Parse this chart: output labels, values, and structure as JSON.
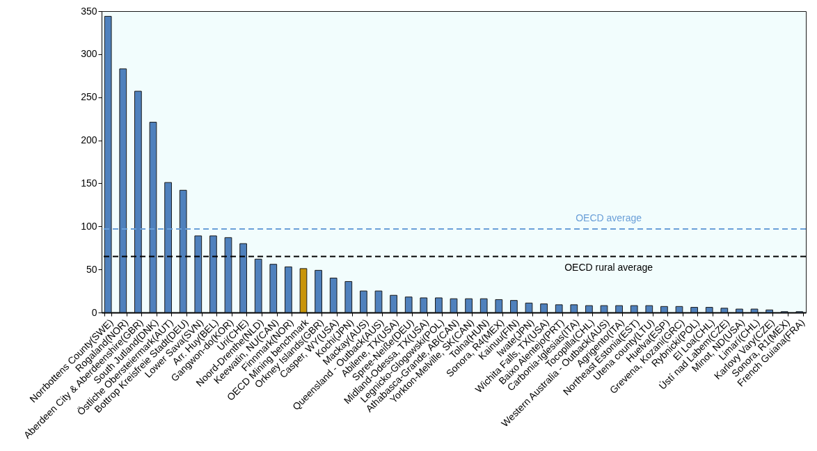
{
  "chart_data": {
    "type": "bar",
    "categories": [
      "Norrbottens County(SWE)",
      "Rogaland(NOR)",
      "Aberdeen City & Aberdeenshire(GBR)",
      "South Jutland(DNK)",
      "Östliche Obersteiermark(AUT)",
      "Bottrop Kreisfreie Stadt(DEU)",
      "Lower Sava(SVN)",
      "Arr. Huy(BEL)",
      "Gangwon-do(KOR)",
      "Uri(CHE)",
      "Noord-Drenthe(NLD)",
      "Keewatin, NU(CAN)",
      "Finnmark(NOR)",
      "OECD Mining benchmark",
      "Orkney Islands(GBR)",
      "Casper, WY(USA)",
      "Kochi(JPN)",
      "Mackay(AUS)",
      "Queensland - Outback(AUS)",
      "Abilene, TX(USA)",
      "Spree-Neiße(DEU)",
      "Midland-Odessa, TX(USA)",
      "Legnicko-Glogowski(POL)",
      "Athabasca-Grande, AB(CAN)",
      "Yorkton-Melville, SK(CAN)",
      "Tolna(HUN)",
      "Sonora, R4(MEX)",
      "Kainuu(FIN)",
      "Iwate(JPN)",
      "Wichita Falls, TX(USA)",
      "Baixo Alentejo(PRT)",
      "Carbonia-Iglesias(ITA)",
      "Tocopilla(CHL)",
      "Western Australia - Outback(AUS)",
      "Agrigento(ITA)",
      "Northeast Estonia(EST)",
      "Utena county(LTU)",
      "Huelva(ESP)",
      "Grevena, Kozani(GRC)",
      "Rybnicki(POL)",
      "El Loa(CHL)",
      "Ústí nad Labem(CZE)",
      "Minot, ND(USA)",
      "Limarí(CHL)",
      "Karlovy Vary(CZE)",
      "Sonora, R1(MEX)",
      "French Guiana(FRA)"
    ],
    "values": [
      344,
      283,
      257,
      221,
      151,
      142,
      89,
      89,
      87,
      80,
      62,
      56,
      53,
      51,
      49,
      40,
      36,
      25,
      25,
      20,
      18,
      17,
      17,
      16,
      16,
      16,
      15,
      14,
      11,
      10,
      9,
      9,
      8,
      8,
      8,
      8,
      8,
      7,
      7,
      6,
      6,
      5,
      4,
      4,
      3,
      1,
      1
    ],
    "colors": [
      "#4f81bd",
      "#4f81bd",
      "#4f81bd",
      "#4f81bd",
      "#4f81bd",
      "#4f81bd",
      "#4f81bd",
      "#4f81bd",
      "#4f81bd",
      "#4f81bd",
      "#4f81bd",
      "#4f81bd",
      "#4f81bd",
      "#c8950a",
      "#4f81bd",
      "#4f81bd",
      "#4f81bd",
      "#4f81bd",
      "#4f81bd",
      "#4f81bd",
      "#4f81bd",
      "#4f81bd",
      "#4f81bd",
      "#4f81bd",
      "#4f81bd",
      "#4f81bd",
      "#4f81bd",
      "#4f81bd",
      "#4f81bd",
      "#4f81bd",
      "#4f81bd",
      "#4f81bd",
      "#4f81bd",
      "#4f81bd",
      "#4f81bd",
      "#4f81bd",
      "#4f81bd",
      "#4f81bd",
      "#4f81bd",
      "#4f81bd",
      "#4f81bd",
      "#4f81bd",
      "#4f81bd",
      "#4f81bd",
      "#4f81bd",
      "#4f81bd",
      "#4f81bd"
    ],
    "ylim": [
      0,
      350
    ],
    "yticks": [
      0,
      50,
      100,
      150,
      200,
      250,
      300,
      350
    ],
    "ref_lines": [
      {
        "axis": "y",
        "value": 97,
        "label": "OECD average",
        "color": "#6a9fd8",
        "line_style": "dashed"
      },
      {
        "axis": "y",
        "value": 65,
        "label": "OECD rural average",
        "color": "#000000",
        "line_style": "dashed"
      }
    ]
  }
}
